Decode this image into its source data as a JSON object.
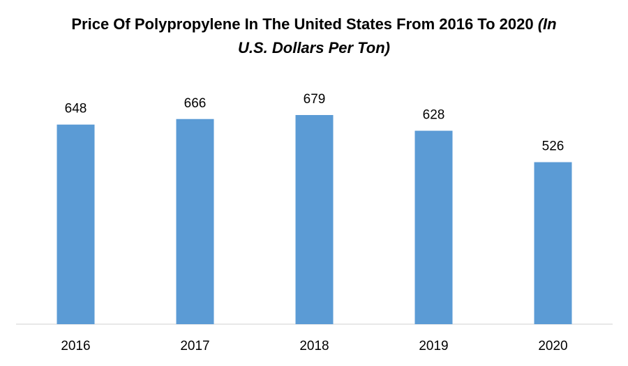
{
  "chart_data": {
    "type": "bar",
    "title": "Price Of Polypropylene In The United States From 2016 To 2020",
    "subtitle": "(In U.S. Dollars Per Ton)",
    "categories": [
      "2016",
      "2017",
      "2018",
      "2019",
      "2020"
    ],
    "values": [
      648,
      666,
      679,
      628,
      526
    ],
    "color": "#5b9bd5"
  }
}
